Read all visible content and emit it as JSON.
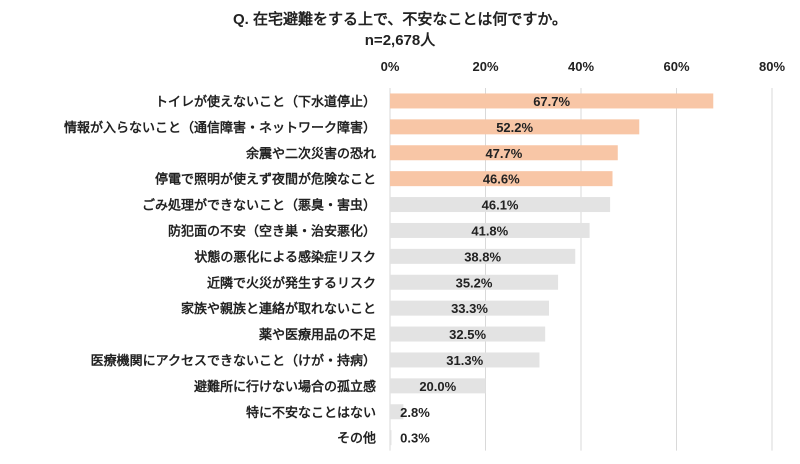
{
  "chart_data": {
    "type": "bar",
    "orientation": "horizontal",
    "title": "Q. 在宅避難をする上で、不安なことは何ですか。",
    "subtitle": "n=2,678人",
    "xlabel": "",
    "ylabel": "",
    "xlim": [
      0,
      80
    ],
    "xticks": [
      0,
      20,
      40,
      60,
      80
    ],
    "xtick_labels": [
      "0%",
      "20%",
      "40%",
      "60%",
      "80%"
    ],
    "grid": true,
    "colors": {
      "highlight": "#F8C6A6",
      "default": "#E3E3E3"
    },
    "categories": [
      "トイレが使えないこと（下水道停止）",
      "情報が入らないこと（通信障害・ネットワーク障害）",
      "余震や二次災害の恐れ",
      "停電で照明が使えず夜間が危険なこと",
      "ごみ処理ができないこと（悪臭・害虫）",
      "防犯面の不安（空き巣・治安悪化）",
      "状態の悪化による感染症リスク",
      "近隣で火災が発生するリスク",
      "家族や親族と連絡が取れないこと",
      "薬や医療用品の不足",
      "医療機関にアクセスできないこと（けが・持病）",
      "避難所に行けない場合の孤立感",
      "特に不安なことはない",
      "その他"
    ],
    "values": [
      67.7,
      52.2,
      47.7,
      46.6,
      46.1,
      41.8,
      38.8,
      35.2,
      33.3,
      32.5,
      31.3,
      20.0,
      2.8,
      0.3
    ],
    "value_labels": [
      "67.7%",
      "52.2%",
      "47.7%",
      "46.6%",
      "46.1%",
      "41.8%",
      "38.8%",
      "35.2%",
      "33.3%",
      "32.5%",
      "31.3%",
      "20.0%",
      "2.8%",
      "0.3%"
    ],
    "highlighted_count": 4
  }
}
